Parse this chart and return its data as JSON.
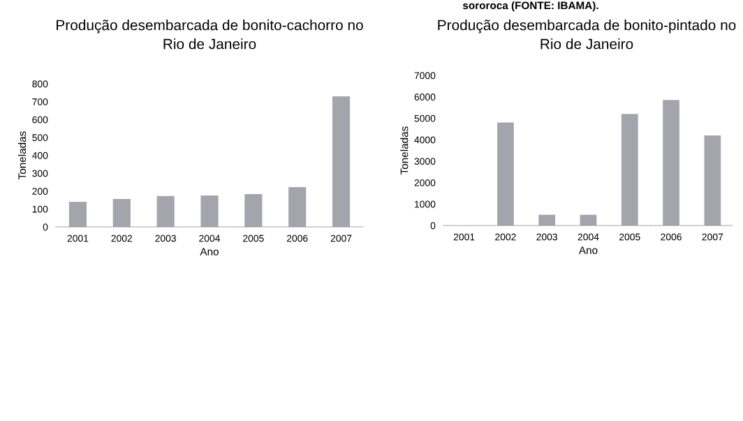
{
  "chart_data": [
    {
      "type": "bar",
      "title": "Produção desembarcada de bonito-cachorro no\nRio de Janeiro",
      "xlabel": "Ano",
      "ylabel": "Toneladas",
      "categories": [
        "2001",
        "2002",
        "2003",
        "2004",
        "2005",
        "2006",
        "2007"
      ],
      "values": [
        140,
        156,
        173,
        176,
        183,
        222,
        730
      ],
      "color": "#a4a4ac",
      "ylim": [
        0,
        800
      ],
      "yticks": [
        0,
        100,
        200,
        300,
        400,
        500,
        600,
        700,
        800
      ],
      "grid": false,
      "legend": false,
      "annotations": [
        "sororoca (FONTE: IBAMA)."
      ]
    },
    {
      "type": "bar",
      "title": "Produção desembarcada de bonito-pintado no\nRio de Janeiro",
      "xlabel": "Ano",
      "ylabel": "Toneladas",
      "categories": [
        "2001",
        "2002",
        "2003",
        "2004",
        "2005",
        "2006",
        "2007"
      ],
      "values": [
        0,
        4800,
        500,
        500,
        5200,
        5850,
        4200
      ],
      "color": "#a4a4ac",
      "ylim": [
        0,
        7000
      ],
      "yticks": [
        0,
        1000,
        2000,
        3000,
        4000,
        5000,
        6000,
        7000
      ],
      "grid": false,
      "legend": false
    }
  ]
}
